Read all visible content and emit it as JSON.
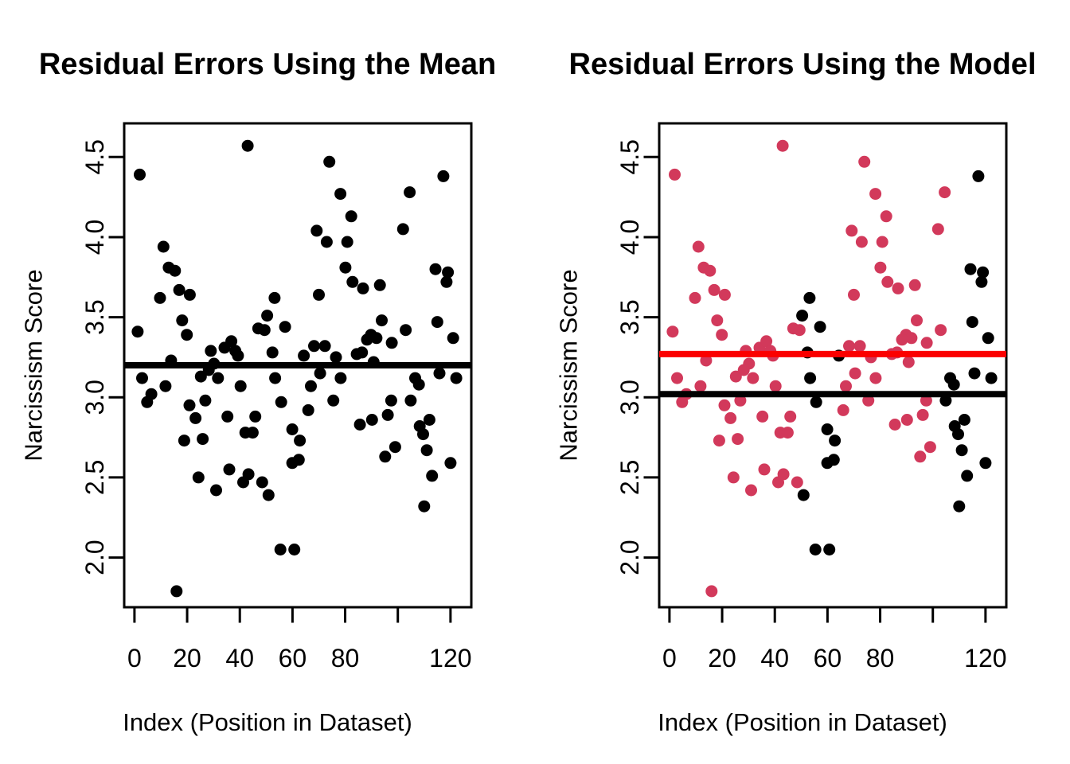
{
  "figure": {
    "background": "#ffffff",
    "text_color": "#000000"
  },
  "chart_data": {
    "type": "scatter",
    "shared_axes": {
      "xlabel": "Index (Position in Dataset)",
      "ylabel": "Narcissism Score",
      "xlim": [
        -3.9,
        127.9
      ],
      "ylim": [
        1.69,
        4.71
      ],
      "x_ticks": [
        0,
        20,
        40,
        60,
        80,
        100,
        120
      ],
      "x_tick_labels": [
        "0",
        "20",
        "40",
        "60",
        "80",
        "",
        "120"
      ],
      "y_ticks": [
        2.0,
        2.5,
        3.0,
        3.5,
        4.0,
        4.5
      ],
      "y_tick_labels": [
        "2.0",
        "2.5",
        "3.0",
        "3.5",
        "4.0",
        "4.5"
      ],
      "grid": false,
      "legend": "none"
    },
    "points": [
      [
        2,
        4.39,
        "r"
      ],
      [
        43,
        4.57,
        "r"
      ],
      [
        11,
        3.94,
        "r"
      ],
      [
        13,
        3.81,
        "r"
      ],
      [
        15.4,
        3.79,
        "r"
      ],
      [
        17,
        3.67,
        "r"
      ],
      [
        21,
        3.64,
        "r"
      ],
      [
        9.7,
        3.62,
        "r"
      ],
      [
        18.1,
        3.48,
        "r"
      ],
      [
        1.2,
        3.41,
        "r"
      ],
      [
        19.9,
        3.39,
        "r"
      ],
      [
        29,
        3.29,
        "r"
      ],
      [
        34.2,
        3.31,
        "r"
      ],
      [
        36.8,
        3.35,
        "r"
      ],
      [
        38.3,
        3.29,
        "r"
      ],
      [
        39.3,
        3.26,
        "r"
      ],
      [
        13.9,
        3.23,
        "r"
      ],
      [
        30.2,
        3.21,
        "r"
      ],
      [
        2.9,
        3.12,
        "r"
      ],
      [
        6.4,
        3.02,
        "r"
      ],
      [
        4.8,
        2.97,
        "r"
      ],
      [
        11.8,
        3.07,
        "r"
      ],
      [
        25.2,
        3.13,
        "r"
      ],
      [
        28.2,
        3.17,
        "r"
      ],
      [
        31.7,
        3.12,
        "r"
      ],
      [
        40.3,
        3.07,
        "r"
      ],
      [
        20.9,
        2.95,
        "r"
      ],
      [
        23.2,
        2.87,
        "r"
      ],
      [
        26.9,
        2.98,
        "r"
      ],
      [
        25.9,
        2.74,
        "r"
      ],
      [
        18.9,
        2.73,
        "r"
      ],
      [
        35.3,
        2.88,
        "r"
      ],
      [
        45.9,
        2.88,
        "r"
      ],
      [
        42.1,
        2.78,
        "r"
      ],
      [
        44.9,
        2.78,
        "r"
      ],
      [
        24.3,
        2.5,
        "r"
      ],
      [
        36,
        2.55,
        "r"
      ],
      [
        41.3,
        2.47,
        "r"
      ],
      [
        43.3,
        2.52,
        "r"
      ],
      [
        48.5,
        2.47,
        "r"
      ],
      [
        31,
        2.42,
        "r"
      ],
      [
        16,
        1.79,
        "r"
      ],
      [
        47,
        3.43,
        "r"
      ],
      [
        49.4,
        3.42,
        "r"
      ],
      [
        74,
        4.47,
        "r"
      ],
      [
        78.2,
        4.27,
        "r"
      ],
      [
        104.5,
        4.28,
        "r"
      ],
      [
        82.3,
        4.13,
        "r"
      ],
      [
        69.2,
        4.04,
        "r"
      ],
      [
        102,
        4.05,
        "r"
      ],
      [
        73,
        3.97,
        "r"
      ],
      [
        80.8,
        3.97,
        "r"
      ],
      [
        80.1,
        3.81,
        "r"
      ],
      [
        82.8,
        3.72,
        "r"
      ],
      [
        86.8,
        3.68,
        "r"
      ],
      [
        93.2,
        3.7,
        "r"
      ],
      [
        70,
        3.64,
        "r"
      ],
      [
        93.9,
        3.48,
        "r"
      ],
      [
        103,
        3.42,
        "r"
      ],
      [
        89.8,
        3.39,
        "r"
      ],
      [
        91.9,
        3.37,
        "r"
      ],
      [
        88.3,
        3.36,
        "r"
      ],
      [
        97.7,
        3.34,
        "r"
      ],
      [
        68.2,
        3.32,
        "r"
      ],
      [
        72.3,
        3.32,
        "r"
      ],
      [
        76.5,
        3.25,
        "r"
      ],
      [
        84.4,
        3.27,
        "r"
      ],
      [
        86.4,
        3.28,
        "r"
      ],
      [
        90.8,
        3.22,
        "r"
      ],
      [
        70.5,
        3.15,
        "r"
      ],
      [
        78.3,
        3.12,
        "r"
      ],
      [
        67,
        3.07,
        "r"
      ],
      [
        75.5,
        2.98,
        "r"
      ],
      [
        66,
        2.92,
        "r"
      ],
      [
        85.6,
        2.83,
        "r"
      ],
      [
        90.2,
        2.86,
        "r"
      ],
      [
        96.2,
        2.89,
        "r"
      ],
      [
        97.5,
        2.98,
        "r"
      ],
      [
        99,
        2.69,
        "r"
      ],
      [
        95.2,
        2.63,
        "r"
      ],
      [
        117.3,
        4.38,
        "b"
      ],
      [
        114.3,
        3.8,
        "b"
      ],
      [
        119,
        3.78,
        "b"
      ],
      [
        118.5,
        3.72,
        "b"
      ],
      [
        115,
        3.47,
        "b"
      ],
      [
        121,
        3.37,
        "b"
      ],
      [
        53.2,
        3.62,
        "b"
      ],
      [
        50.4,
        3.51,
        "b"
      ],
      [
        57.2,
        3.44,
        "b"
      ],
      [
        52.4,
        3.28,
        "b"
      ],
      [
        64.3,
        3.26,
        "b"
      ],
      [
        53.4,
        3.12,
        "b"
      ],
      [
        55.7,
        2.97,
        "b"
      ],
      [
        59.9,
        2.8,
        "b"
      ],
      [
        62.8,
        2.73,
        "b"
      ],
      [
        59.9,
        2.59,
        "b"
      ],
      [
        62.4,
        2.61,
        "b"
      ],
      [
        50.9,
        2.39,
        "b"
      ],
      [
        55.4,
        2.05,
        "b"
      ],
      [
        60.7,
        2.05,
        "b"
      ],
      [
        106.6,
        3.12,
        "b"
      ],
      [
        108,
        3.08,
        "b"
      ],
      [
        115.8,
        3.15,
        "b"
      ],
      [
        122.2,
        3.12,
        "b"
      ],
      [
        104.9,
        2.98,
        "b"
      ],
      [
        112,
        2.86,
        "b"
      ],
      [
        108.3,
        2.82,
        "b"
      ],
      [
        109.6,
        2.77,
        "b"
      ],
      [
        111,
        2.67,
        "b"
      ],
      [
        120,
        2.59,
        "b"
      ],
      [
        113,
        2.51,
        "b"
      ],
      [
        110,
        2.32,
        "b"
      ]
    ],
    "charts": [
      {
        "title": "Residual Errors Using the Mean",
        "xlabel": "Index (Position in Dataset)",
        "ylabel": "Narcissism Score",
        "color_mode": "uniform",
        "uniform_color": "#000000",
        "ref_lines": [
          {
            "y": 3.2,
            "color": "#000000",
            "name": "overall-mean-line"
          }
        ]
      },
      {
        "title": "Residual Errors Using the Model",
        "xlabel": "Index (Position in Dataset)",
        "ylabel": "Narcissism Score",
        "color_mode": "by_group",
        "group_colors": {
          "r": "#D2395B",
          "b": "#000000"
        },
        "ref_lines": [
          {
            "y": 3.27,
            "color": "#FB0000",
            "name": "red-group-mean-line"
          },
          {
            "y": 3.02,
            "color": "#000000",
            "name": "black-group-mean-line"
          }
        ]
      }
    ]
  }
}
